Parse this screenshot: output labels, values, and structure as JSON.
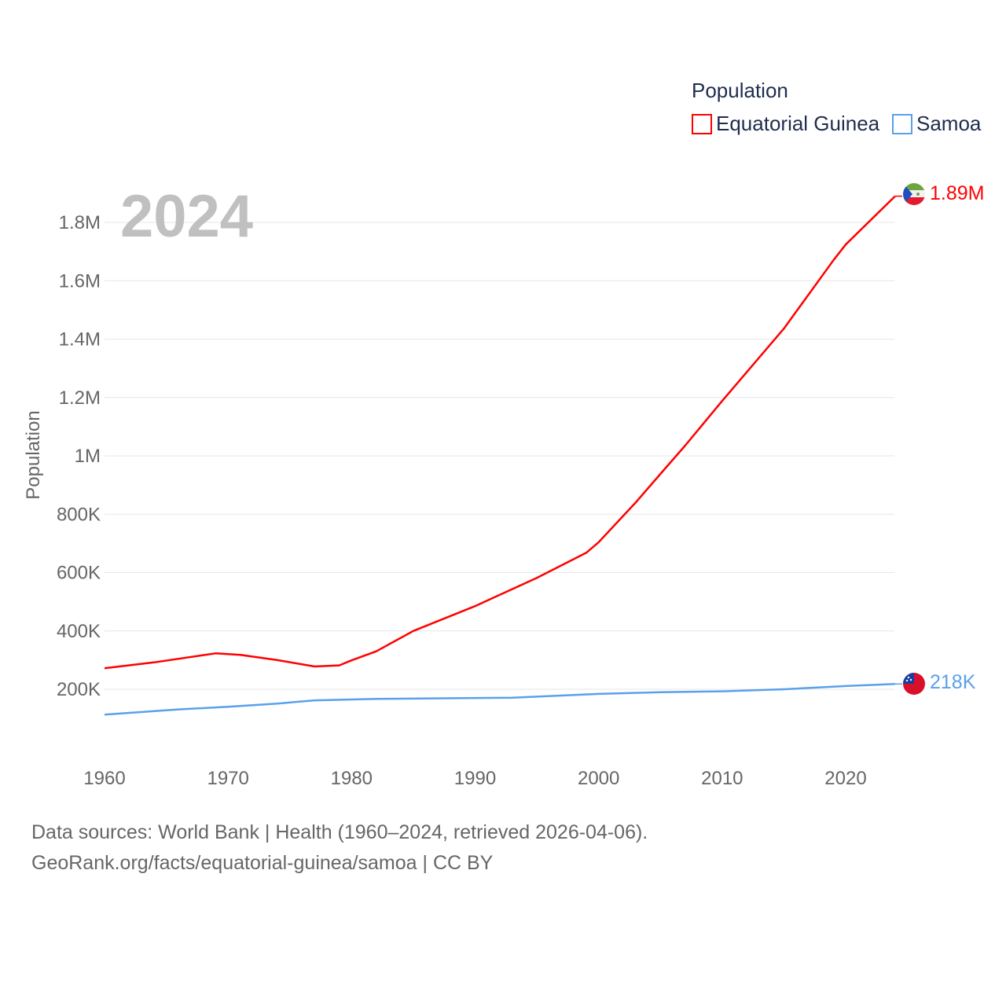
{
  "chart_data": {
    "type": "line",
    "title": "Population",
    "year_label": "2024",
    "xlabel": "",
    "ylabel": "Population",
    "xlim": [
      1960,
      2024
    ],
    "ylim": [
      0,
      1900000
    ],
    "grid": true,
    "legend_position": "top-right",
    "x_ticks": [
      1960,
      1970,
      1980,
      1990,
      2000,
      2010,
      2020
    ],
    "x_tick_labels": [
      "1960",
      "1970",
      "1980",
      "1990",
      "2000",
      "2010",
      "2020"
    ],
    "y_ticks": [
      200000,
      400000,
      600000,
      800000,
      1000000,
      1200000,
      1400000,
      1600000,
      1800000
    ],
    "y_tick_labels": [
      "200K",
      "400K",
      "600K",
      "800K",
      "1M",
      "1.2M",
      "1.4M",
      "1.6M",
      "1.8M"
    ],
    "series": [
      {
        "name": "Equatorial Guinea",
        "color": "#ff0000",
        "end_label": "1.89M",
        "x": [
          1960,
          1964,
          1969,
          1971,
          1974,
          1977,
          1979,
          1980,
          1982,
          1985,
          1990,
          1995,
          1999,
          2000,
          2003,
          2005,
          2007,
          2010,
          2015,
          2019,
          2020,
          2024
        ],
        "values": [
          272000,
          292000,
          323000,
          318000,
          300000,
          278000,
          282000,
          299000,
          330000,
          400000,
          485000,
          582000,
          668000,
          704000,
          840000,
          938000,
          1035000,
          1188000,
          1436000,
          1670000,
          1724000,
          1890000
        ]
      },
      {
        "name": "Samoa",
        "color": "#5aa0eb",
        "end_label": "218K",
        "x": [
          1960,
          1966,
          1970,
          1974,
          1977,
          1982,
          1990,
          1993,
          2000,
          2005,
          2010,
          2015,
          2020,
          2024
        ],
        "values": [
          113000,
          131000,
          140000,
          151000,
          162000,
          167000,
          170000,
          171000,
          184000,
          190000,
          193000,
          200000,
          211000,
          218000
        ]
      }
    ]
  },
  "footer": {
    "line1": "Data sources: World Bank | Health (1960–2024, retrieved 2026-04-06).",
    "line2": "GeoRank.org/facts/equatorial-guinea/samoa | CC BY"
  }
}
